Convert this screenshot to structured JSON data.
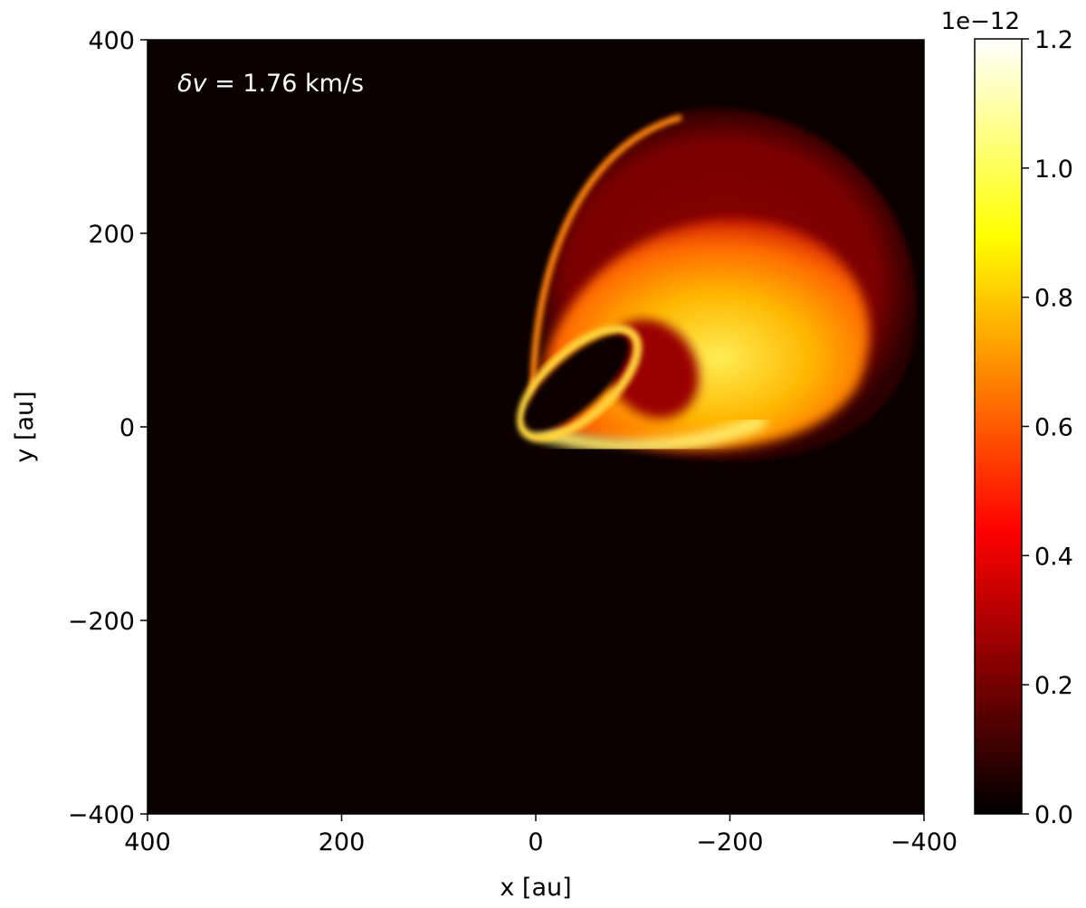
{
  "chart_data": {
    "type": "heatmap",
    "colormap": "hot",
    "annotation": {
      "prefix": "δv",
      "equals": " = ",
      "value": "1.76 km/s",
      "color": "#ffffff"
    },
    "xlabel": "x [au]",
    "ylabel": "y [au]",
    "xlim": [
      400,
      -400
    ],
    "ylim": [
      -400,
      400
    ],
    "x_axis_inverted": true,
    "xticks": [
      {
        "value": 400,
        "label": "400"
      },
      {
        "value": 200,
        "label": "200"
      },
      {
        "value": 0,
        "label": "0"
      },
      {
        "value": -200,
        "label": "−200"
      },
      {
        "value": -400,
        "label": "−400"
      }
    ],
    "yticks": [
      {
        "value": 400,
        "label": "400"
      },
      {
        "value": 200,
        "label": "200"
      },
      {
        "value": 0,
        "label": "0"
      },
      {
        "value": -200,
        "label": "−200"
      },
      {
        "value": -400,
        "label": "−400"
      }
    ],
    "colorbar": {
      "range": [
        0.0,
        1.2
      ],
      "offset_text": "1e−12",
      "ticks": [
        {
          "value": 0.0,
          "label": "0.0"
        },
        {
          "value": 0.2,
          "label": "0.2"
        },
        {
          "value": 0.4,
          "label": "0.4"
        },
        {
          "value": 0.6,
          "label": "0.6"
        },
        {
          "value": 0.8,
          "label": "0.8"
        },
        {
          "value": 1.0,
          "label": "1.0"
        },
        {
          "value": 1.2,
          "label": "1.2"
        }
      ]
    },
    "emission_features": [
      {
        "name": "outer arc",
        "center": [
          -170,
          200
        ],
        "intensity": 0.3
      },
      {
        "name": "bright inner arc",
        "center": [
          -150,
          60
        ],
        "intensity": 0.8
      },
      {
        "name": "lower ridge",
        "center": [
          -120,
          -15
        ],
        "intensity": 1.0
      },
      {
        "name": "dark central cavity",
        "center": [
          -40,
          50
        ],
        "intensity": 0.0
      }
    ],
    "grid": false
  }
}
